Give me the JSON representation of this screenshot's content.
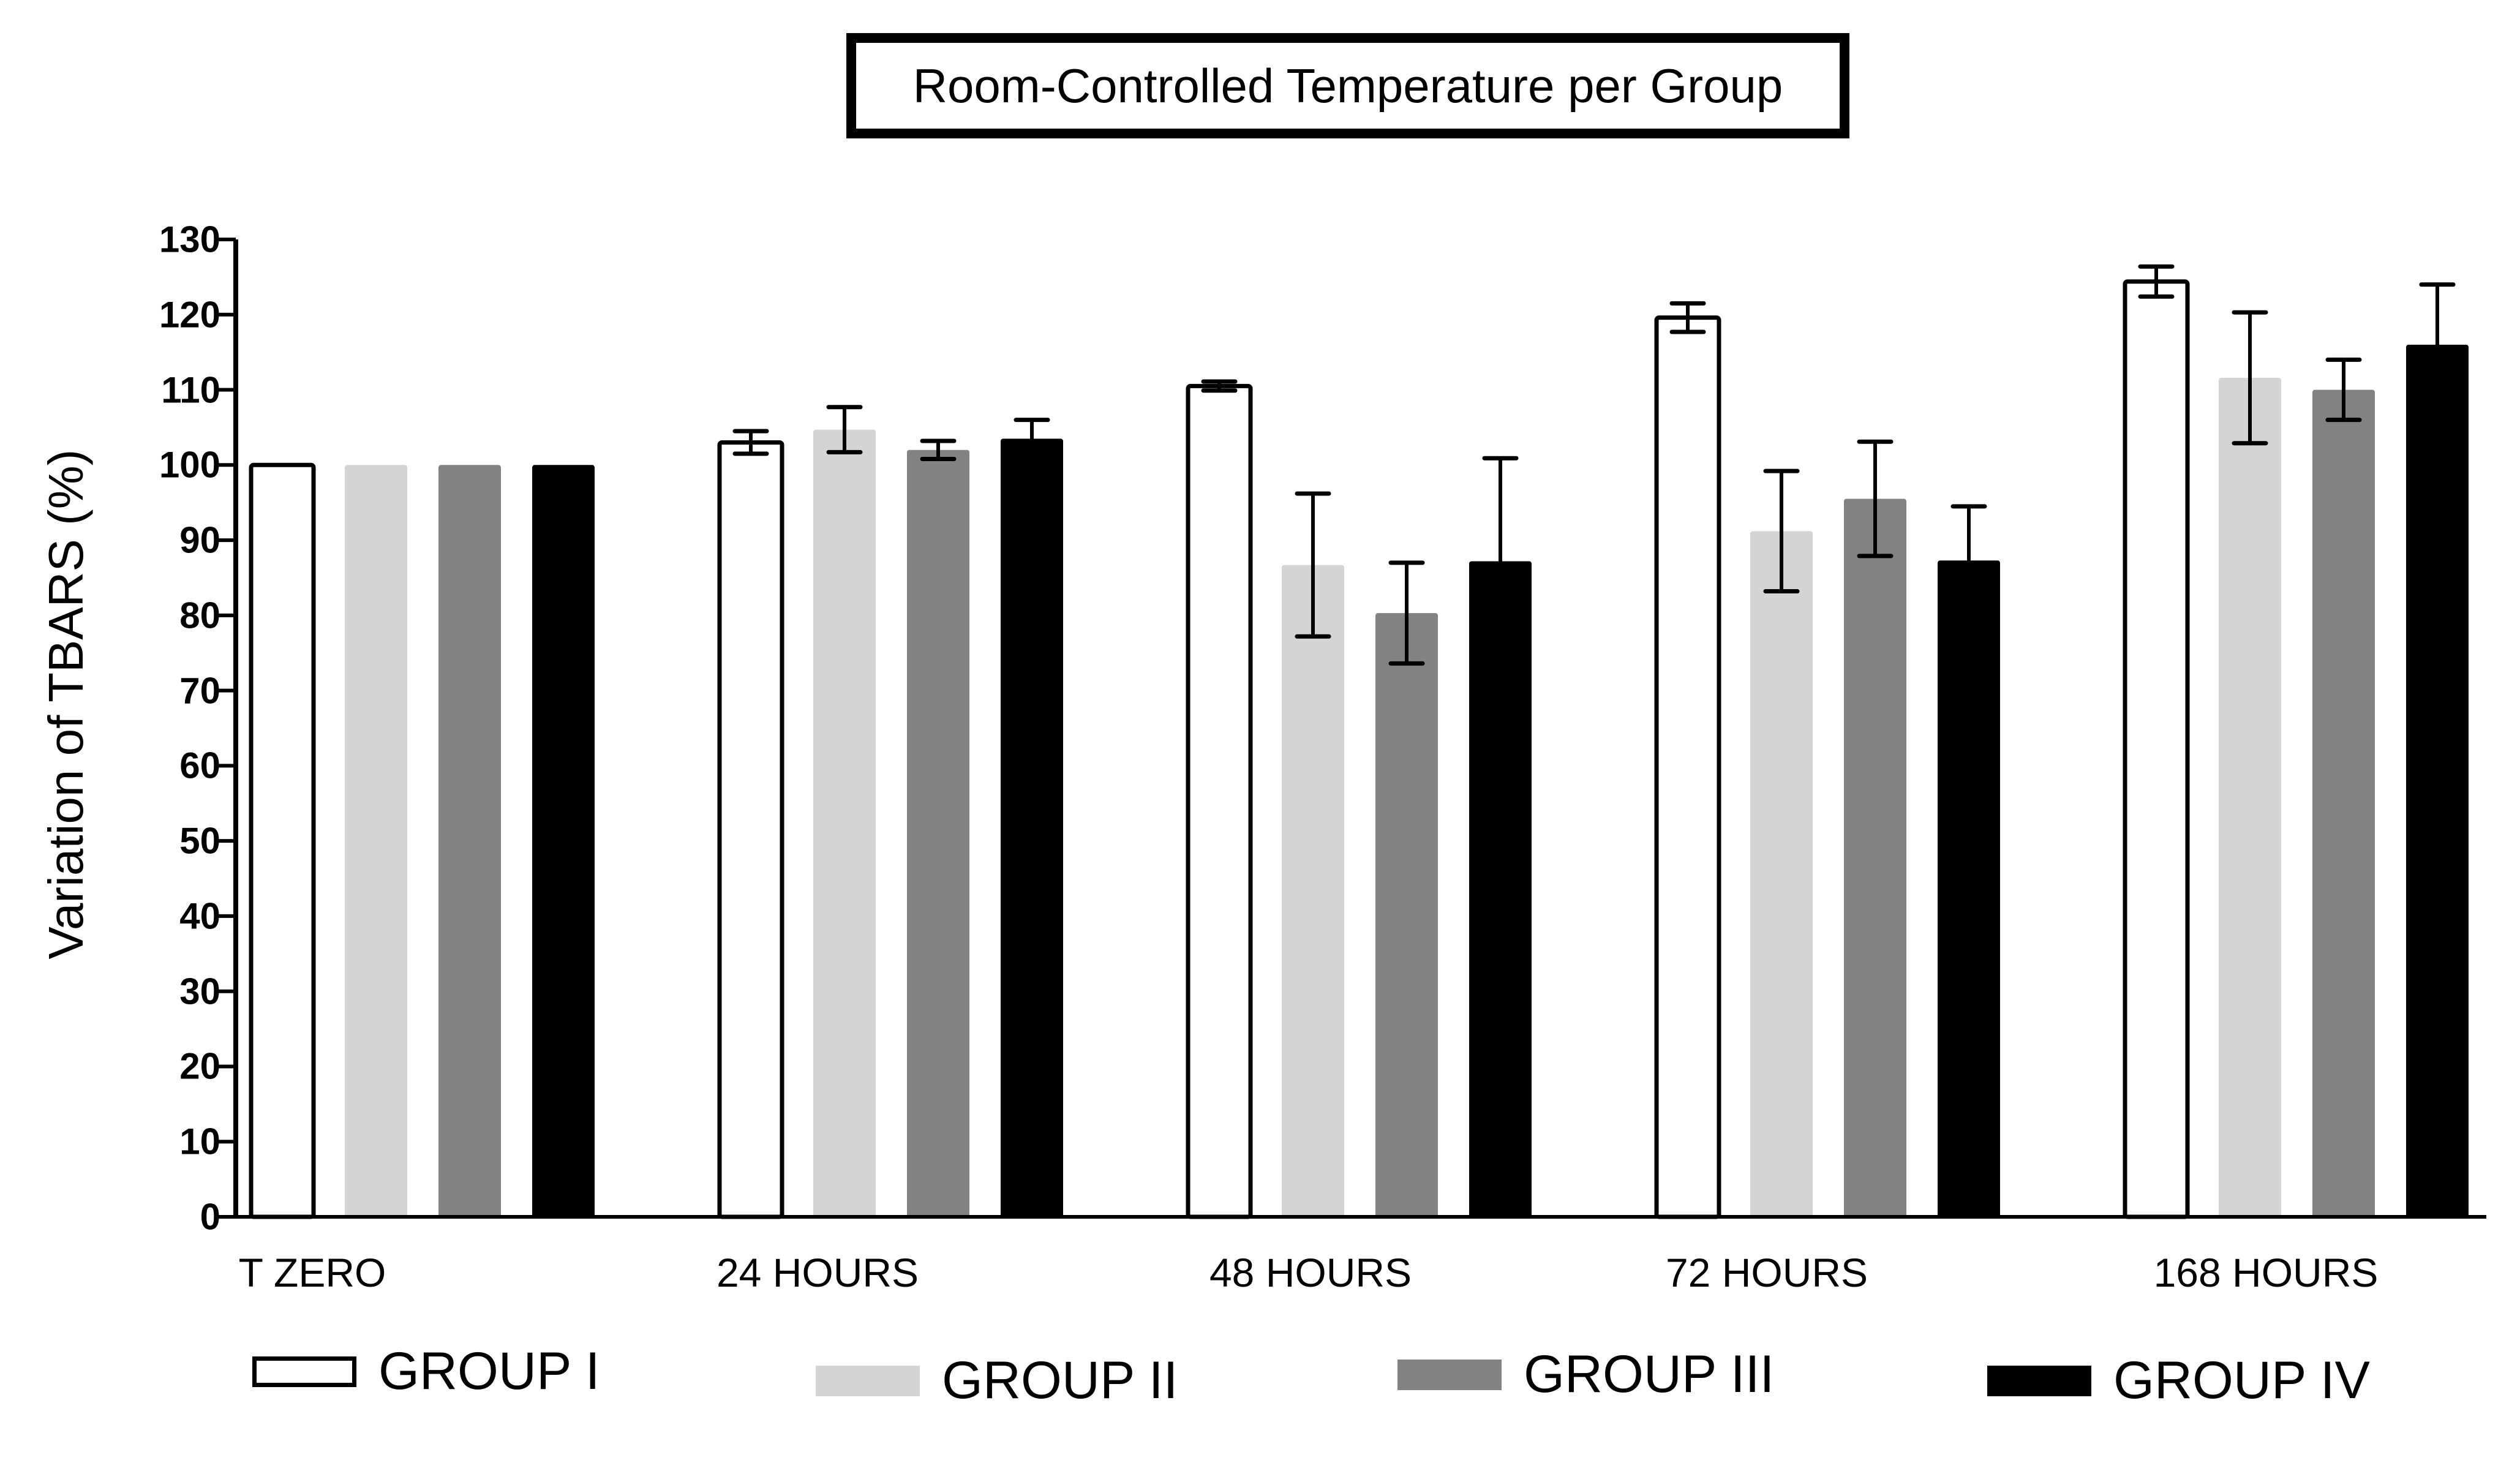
{
  "chart_data": {
    "type": "bar",
    "title": "Room-Controlled Temperature per Group",
    "xlabel": "",
    "ylabel": "Variation of TBARS (%)",
    "ylim": [
      0,
      130
    ],
    "yticks": [
      "0",
      "10",
      "20",
      "30",
      "40",
      "50",
      "60",
      "70",
      "80",
      "90",
      "100",
      "110",
      "120",
      "130"
    ],
    "categories": [
      "T ZERO",
      "24 HOURS",
      "48 HOURS",
      "72 HOURS",
      "168 HOURS"
    ],
    "legend_position": "bottom",
    "grid": false,
    "series": [
      {
        "name": "GROUP I",
        "color": "#ffffff",
        "outline": "#000000",
        "values": [
          100,
          103,
          110.5,
          119.6,
          124.4
        ],
        "errors": [
          0,
          1.5,
          0.6,
          1.9,
          2.0
        ]
      },
      {
        "name": "GROUP II",
        "color": "#d4d4d4",
        "outline": null,
        "values": [
          100,
          104.7,
          86.7,
          91.2,
          111.6
        ],
        "errors": [
          0,
          3.0,
          9.5,
          8.0,
          8.7
        ]
      },
      {
        "name": "GROUP III",
        "color": "#828282",
        "outline": null,
        "values": [
          100,
          102,
          80.3,
          95.5,
          110.0
        ],
        "errors": [
          0,
          1.2,
          6.7,
          7.6,
          4.0
        ]
      },
      {
        "name": "GROUP IV",
        "color": "#000000",
        "outline": null,
        "values": [
          100,
          103.5,
          87.2,
          87.3,
          116.0
        ],
        "errors": [
          0,
          2.5,
          13.7,
          7.2,
          8.0
        ]
      }
    ]
  }
}
